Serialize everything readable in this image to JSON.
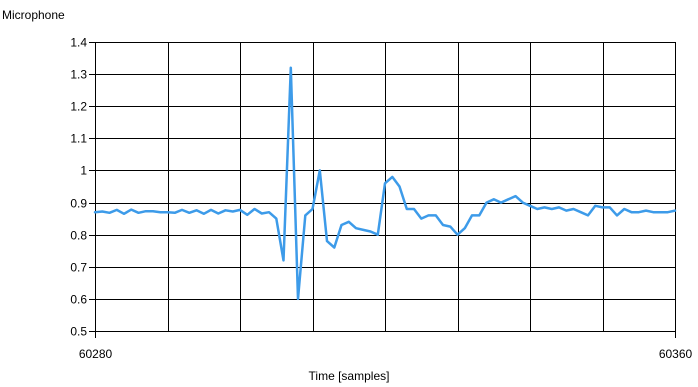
{
  "chart_data": {
    "type": "line",
    "ylabel": "Microphone",
    "xlabel": "Time [samples]",
    "xlim": [
      60280,
      60360
    ],
    "ylim": [
      0.5,
      1.4
    ],
    "xticks": [
      60280,
      60360
    ],
    "xtick_labels": [
      "60280",
      "60360"
    ],
    "yticks": [
      0.5,
      0.6,
      0.7,
      0.8,
      0.9,
      1.0,
      1.1,
      1.2,
      1.3,
      1.4
    ],
    "ytick_labels": [
      "0.5",
      "0.6",
      "0.7",
      "0.8",
      "0.9",
      "1",
      "1.1",
      "1.2",
      "1.3",
      "1.4"
    ],
    "grid": true,
    "grid_vertical_interval": 10,
    "series": [
      {
        "color": "#3d9be9",
        "x": [
          60280,
          60281,
          60282,
          60283,
          60284,
          60285,
          60286,
          60287,
          60288,
          60289,
          60290,
          60291,
          60292,
          60293,
          60294,
          60295,
          60296,
          60297,
          60298,
          60299,
          60300,
          60301,
          60302,
          60303,
          60304,
          60305,
          60306,
          60307,
          60308,
          60309,
          60310,
          60311,
          60312,
          60313,
          60314,
          60315,
          60316,
          60317,
          60318,
          60319,
          60320,
          60321,
          60322,
          60323,
          60324,
          60325,
          60326,
          60327,
          60328,
          60329,
          60330,
          60331,
          60332,
          60333,
          60334,
          60335,
          60336,
          60337,
          60338,
          60339,
          60340,
          60341,
          60342,
          60343,
          60344,
          60345,
          60346,
          60347,
          60348,
          60349,
          60350,
          60351,
          60352,
          60353,
          60354,
          60355,
          60356,
          60357,
          60358,
          60359,
          60360
        ],
        "y": [
          0.87,
          0.872,
          0.868,
          0.877,
          0.865,
          0.878,
          0.868,
          0.873,
          0.873,
          0.87,
          0.87,
          0.868,
          0.877,
          0.868,
          0.876,
          0.865,
          0.877,
          0.866,
          0.876,
          0.872,
          0.877,
          0.862,
          0.88,
          0.866,
          0.87,
          0.85,
          0.72,
          1.32,
          0.6,
          0.86,
          0.88,
          1.0,
          0.78,
          0.76,
          0.83,
          0.84,
          0.82,
          0.815,
          0.81,
          0.8,
          0.96,
          0.98,
          0.95,
          0.88,
          0.88,
          0.85,
          0.86,
          0.86,
          0.83,
          0.825,
          0.8,
          0.82,
          0.86,
          0.86,
          0.9,
          0.91,
          0.9,
          0.91,
          0.92,
          0.9,
          0.89,
          0.88,
          0.885,
          0.88,
          0.885,
          0.875,
          0.88,
          0.87,
          0.86,
          0.89,
          0.885,
          0.885,
          0.86,
          0.88,
          0.87,
          0.87,
          0.875,
          0.87,
          0.87,
          0.87,
          0.875
        ]
      }
    ]
  }
}
